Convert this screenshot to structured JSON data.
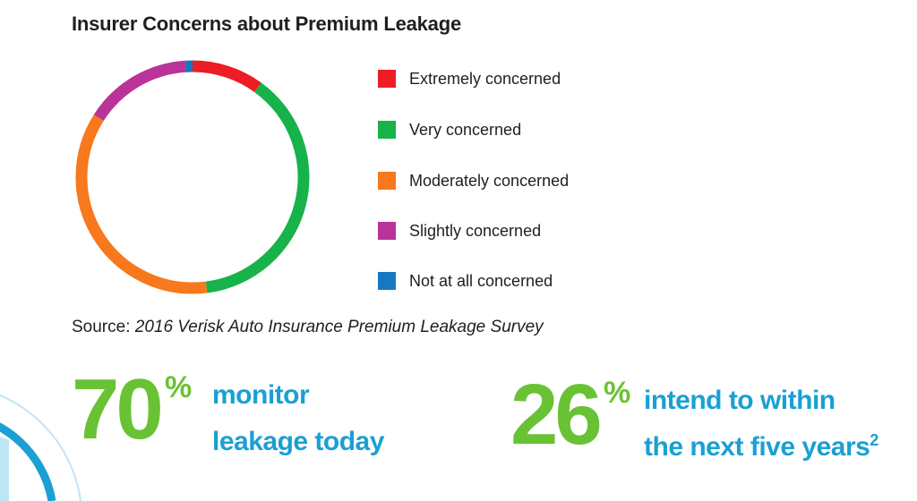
{
  "chart_data": {
    "type": "pie",
    "variant": "donut",
    "title": "Insurer Concerns about Premium Leakage",
    "series": [
      {
        "name": "Extremely concerned",
        "value": 10,
        "color": "#ee1c24"
      },
      {
        "name": "Very concerned",
        "value": 38,
        "color": "#17b24a"
      },
      {
        "name": "Moderately concerned",
        "value": 36,
        "color": "#f7781d"
      },
      {
        "name": "Slightly concerned",
        "value": 15,
        "color": "#b93398"
      },
      {
        "name": "Not at all concerned",
        "value": 1,
        "color": "#1678c2"
      }
    ],
    "legend_position": "right"
  },
  "source": {
    "prefix": "Source: ",
    "title": "2016 Verisk Auto Insurance Premium Leakage Survey"
  },
  "stats": [
    {
      "number": "70",
      "unit": "%",
      "line1": "monitor",
      "line2": "leakage today",
      "footnote": ""
    },
    {
      "number": "26",
      "unit": "%",
      "line1": "intend to within",
      "line2": "the next five years",
      "footnote": "2"
    }
  ],
  "colors": {
    "stat_number": "#69c234",
    "stat_text": "#1aa0d2",
    "decoration": "#1aa0d2"
  }
}
